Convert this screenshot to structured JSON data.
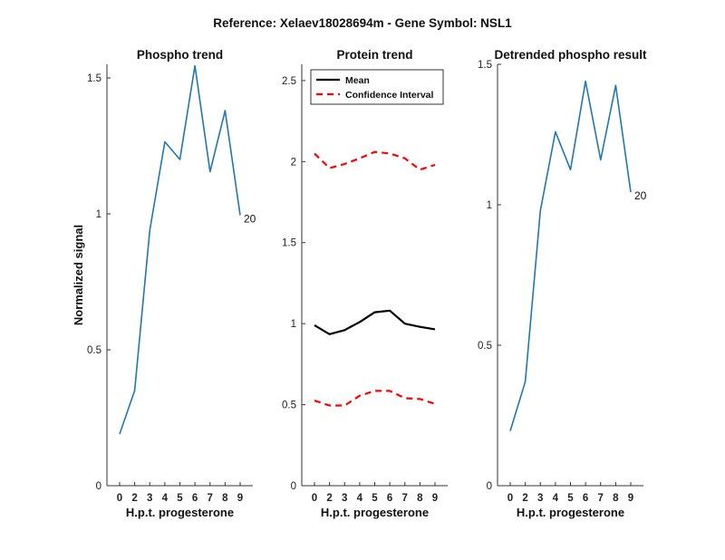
{
  "figure": {
    "suptitle": "Reference:  Xelaev18028694m - Gene Symbol:  NSL1"
  },
  "colors": {
    "phospho_line": "#1f77b4",
    "mean_line": "#000000",
    "ci_line": "#ff0000",
    "axis": "#333333"
  },
  "chart_data": [
    {
      "type": "line",
      "title": "Phospho trend",
      "xlabel": "H.p.t. progesterone",
      "ylabel": "Normalized signal",
      "categories": [
        "0",
        "2",
        "3",
        "4",
        "5",
        "6",
        "7",
        "8",
        "9"
      ],
      "series": [
        {
          "name": "",
          "values": [
            0.19,
            0.35,
            0.94,
            1.265,
            1.2,
            1.545,
            1.155,
            1.38,
            0.995
          ]
        }
      ],
      "end_label": "20",
      "ylim": [
        0,
        1.55
      ],
      "yticks": [
        0,
        0.5,
        1,
        1.5
      ],
      "ytick_labels": [
        "0",
        "0.5",
        "1",
        "1.5"
      ],
      "grid": false
    },
    {
      "type": "line",
      "title": "Protein trend",
      "xlabel": "H.p.t. progesterone",
      "ylabel": "",
      "categories": [
        "0",
        "2",
        "3",
        "4",
        "5",
        "6",
        "7",
        "8",
        "9"
      ],
      "series": [
        {
          "name": "Mean",
          "values": [
            0.99,
            0.935,
            0.96,
            1.01,
            1.07,
            1.08,
            1.0,
            0.98,
            0.965
          ]
        },
        {
          "name": "Confidence Interval",
          "values": [
            2.05,
            1.96,
            1.985,
            2.02,
            2.06,
            2.05,
            2.02,
            1.95,
            1.98
          ]
        },
        {
          "name": "",
          "values": [
            0.525,
            0.495,
            0.495,
            0.555,
            0.585,
            0.585,
            0.54,
            0.535,
            0.505
          ]
        }
      ],
      "legend": "top-left",
      "ylim": [
        0,
        2.6
      ],
      "yticks": [
        0,
        0.5,
        1,
        1.5,
        2,
        2.5
      ],
      "ytick_labels": [
        "0",
        "0.5",
        "1",
        "1.5",
        "2",
        "2.5"
      ],
      "grid": false
    },
    {
      "type": "line",
      "title": "Detrended phospho result",
      "xlabel": "H.p.t. progesterone",
      "ylabel": "",
      "categories": [
        "0",
        "2",
        "3",
        "4",
        "5",
        "6",
        "7",
        "8",
        "9"
      ],
      "series": [
        {
          "name": "",
          "values": [
            0.195,
            0.37,
            0.98,
            1.26,
            1.125,
            1.44,
            1.16,
            1.425,
            1.045
          ]
        }
      ],
      "end_label": "20",
      "ylim": [
        0,
        1.5
      ],
      "yticks": [
        0,
        0.5,
        1,
        1.5
      ],
      "ytick_labels": [
        "0",
        "0.5",
        "1",
        "1.5"
      ],
      "grid": false
    }
  ]
}
